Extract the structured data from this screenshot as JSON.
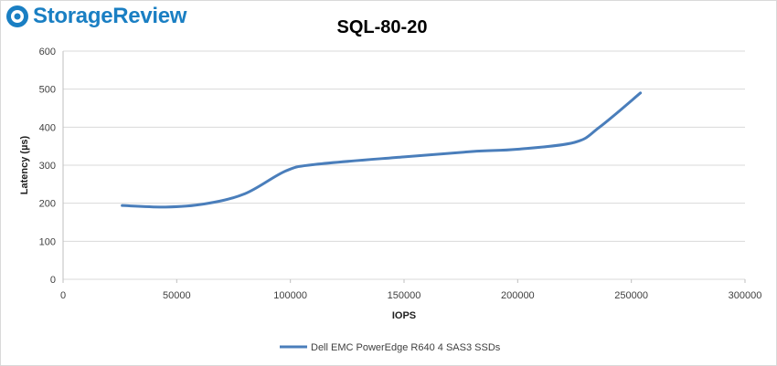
{
  "brand": {
    "logo_text": "StorageReview",
    "logo_icon": "storagereview-logo-icon",
    "color": "#1a7fc3"
  },
  "chart_data": {
    "type": "line",
    "title": "SQL-80-20",
    "xlabel": "IOPS",
    "ylabel": "Latency (µs)",
    "xlim": [
      0,
      300000
    ],
    "ylim": [
      0,
      600
    ],
    "x_ticks": [
      0,
      50000,
      100000,
      150000,
      200000,
      250000,
      300000
    ],
    "y_ticks": [
      0,
      100,
      200,
      300,
      400,
      500,
      600
    ],
    "grid": "horizontal",
    "legend_position": "bottom",
    "series": [
      {
        "name": "Dell EMC PowerEdge R640 4 SAS3 SSDs",
        "color": "#4a7ebb",
        "points": [
          [
            26000,
            194
          ],
          [
            45000,
            190
          ],
          [
            62000,
            198
          ],
          [
            80000,
            225
          ],
          [
            98000,
            285
          ],
          [
            111000,
            302
          ],
          [
            150000,
            322
          ],
          [
            180000,
            336
          ],
          [
            200000,
            342
          ],
          [
            225000,
            360
          ],
          [
            236000,
            400
          ],
          [
            254000,
            490
          ]
        ]
      }
    ]
  }
}
